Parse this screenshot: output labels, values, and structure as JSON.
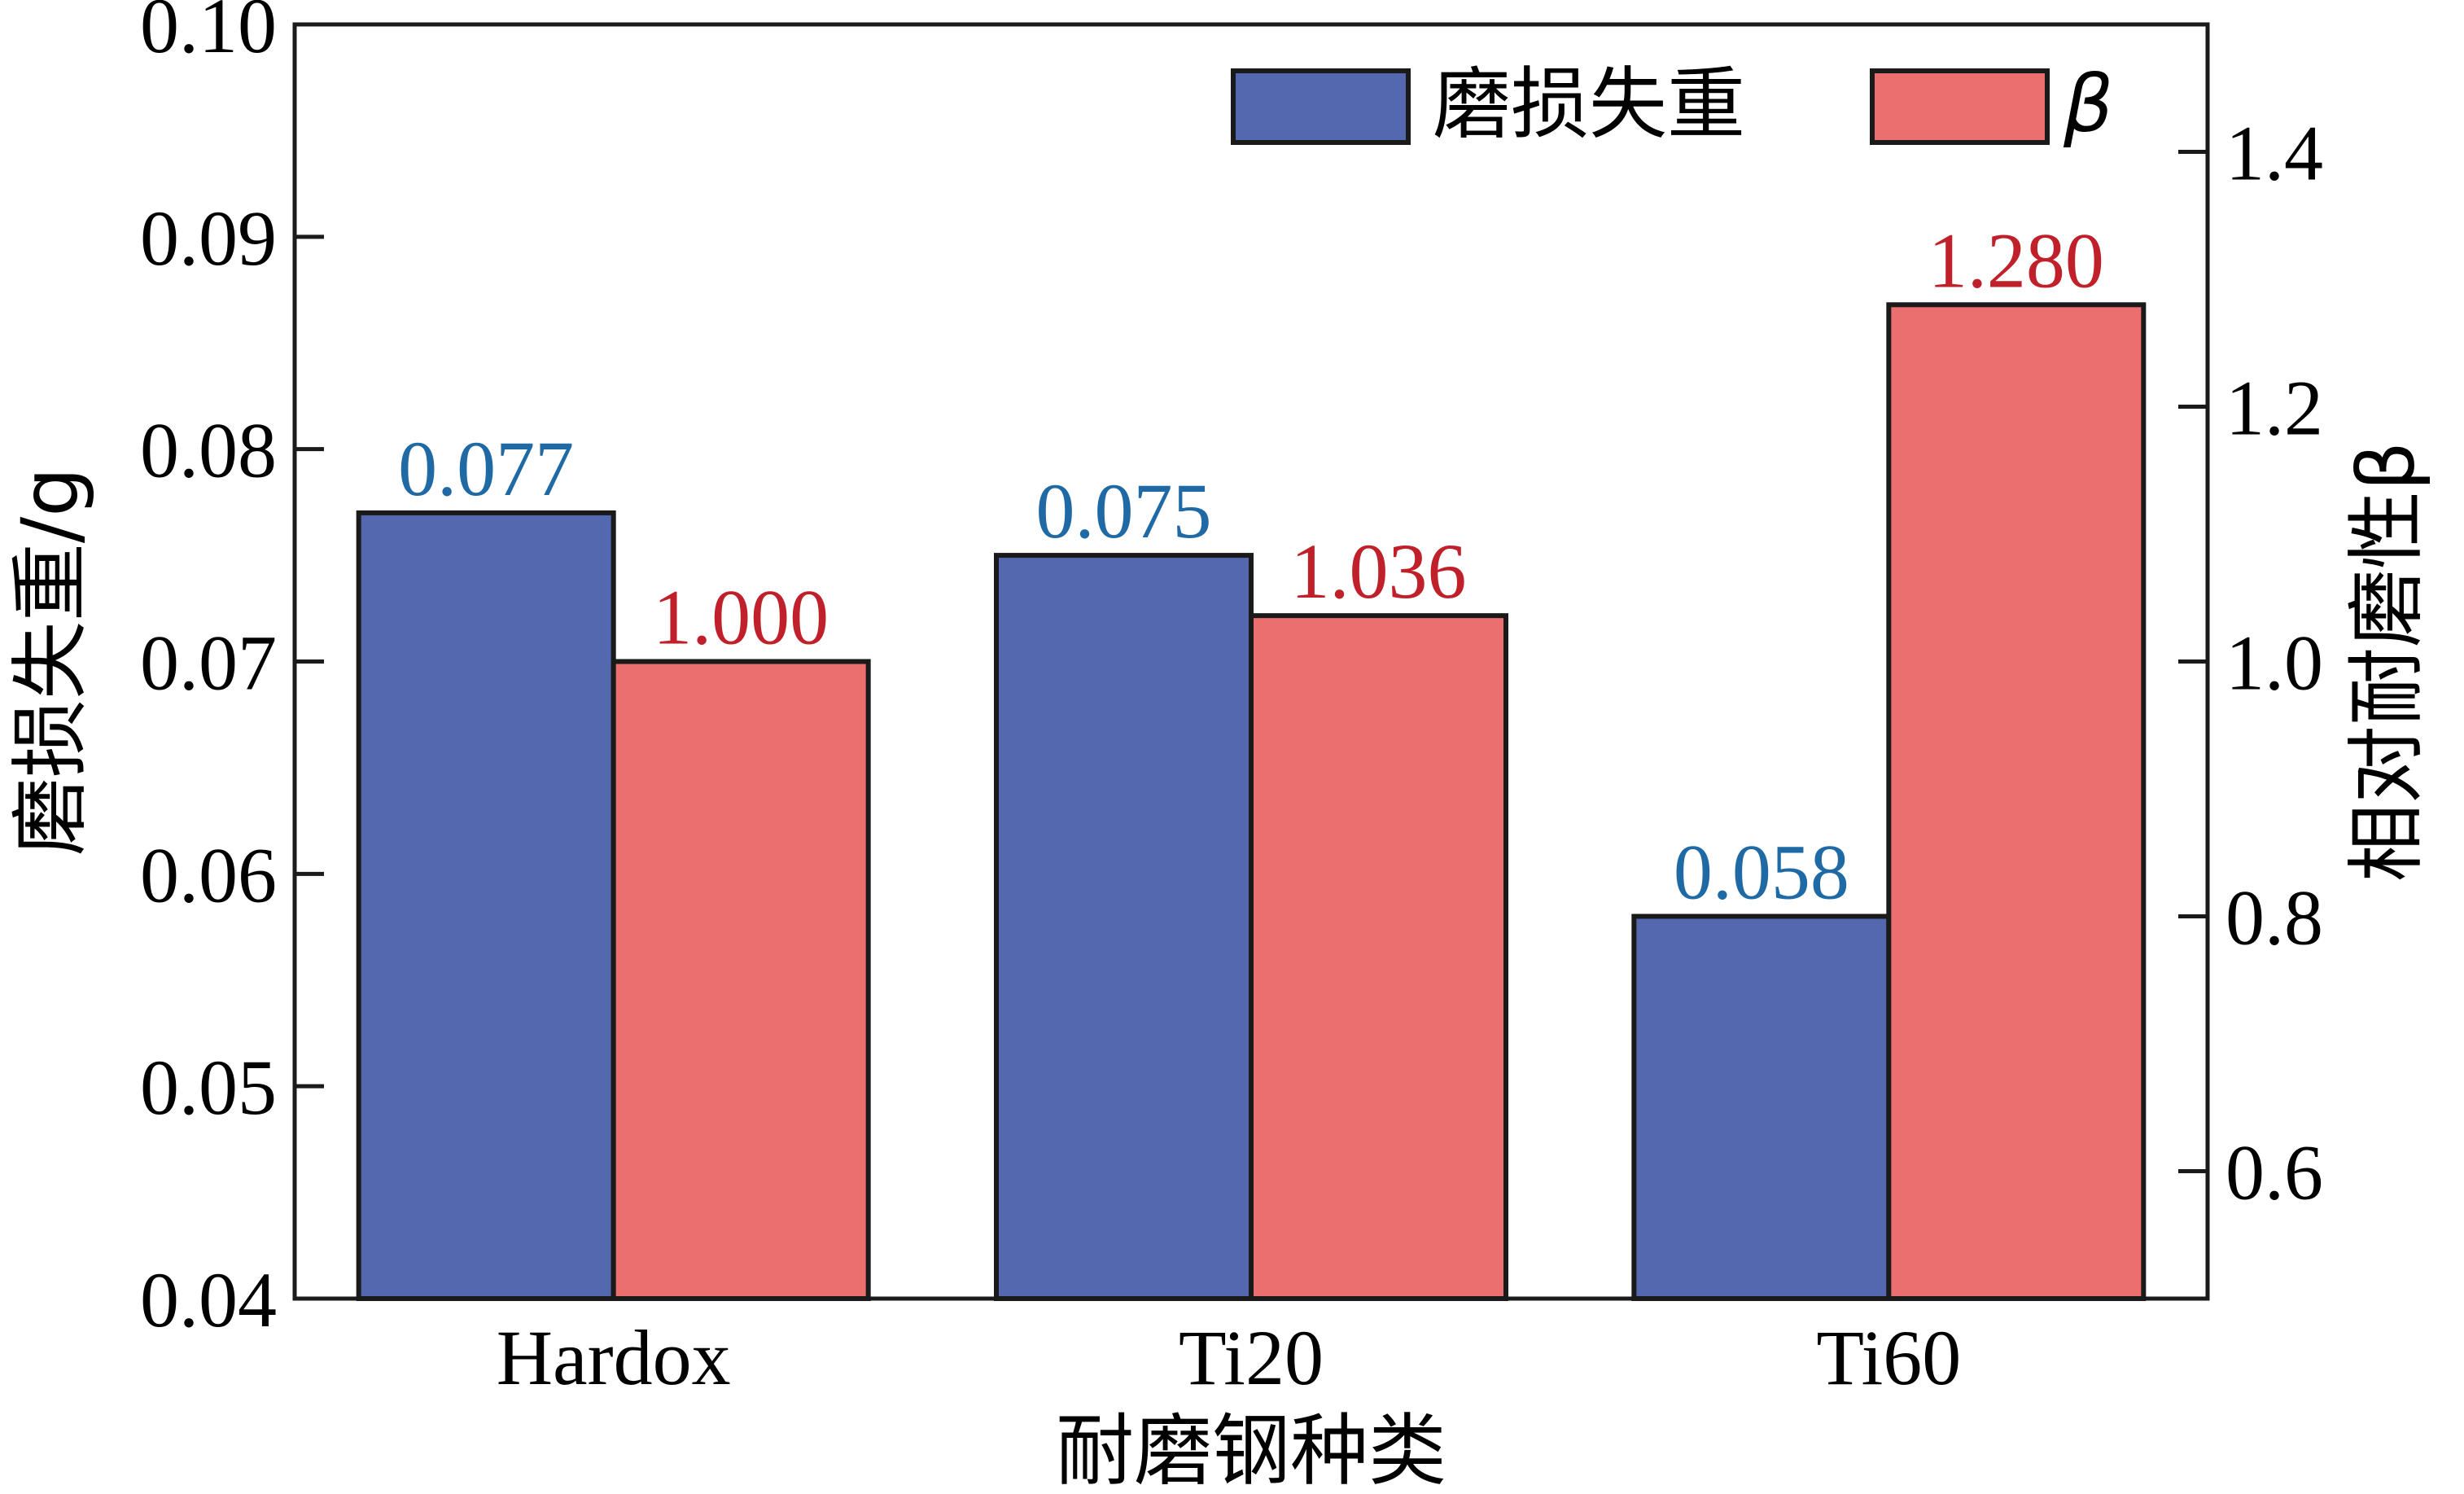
{
  "chart_data": {
    "type": "bar",
    "categories": [
      "Hardox",
      "Ti20",
      "Ti60"
    ],
    "xlabel": "耐磨钢种类",
    "series": [
      {
        "name": "磨损失重",
        "axis": "left",
        "values": [
          0.077,
          0.075,
          0.058
        ],
        "labels": [
          "0.077",
          "0.075",
          "0.058"
        ],
        "color": "#5468b0",
        "label_color": "#1f6aa5"
      },
      {
        "name": "β",
        "axis": "right",
        "values": [
          1.0,
          1.036,
          1.28
        ],
        "labels": [
          "1.000",
          "1.036",
          "1.280"
        ],
        "color": "#ec6f6f",
        "label_color": "#c0202a"
      }
    ],
    "y_left": {
      "label": "磨损失重/g",
      "ylim": [
        0.04,
        0.1
      ],
      "ticks": [
        "0.04",
        "0.05",
        "0.06",
        "0.07",
        "0.08",
        "0.09",
        "0.10"
      ]
    },
    "y_right": {
      "label": "相对耐磨性β",
      "ylim": [
        0.5,
        1.5
      ],
      "ticks": [
        "0.6",
        "0.8",
        "1.0",
        "1.2",
        "1.4"
      ]
    },
    "legend": {
      "position": "top-right"
    },
    "grid": false
  }
}
